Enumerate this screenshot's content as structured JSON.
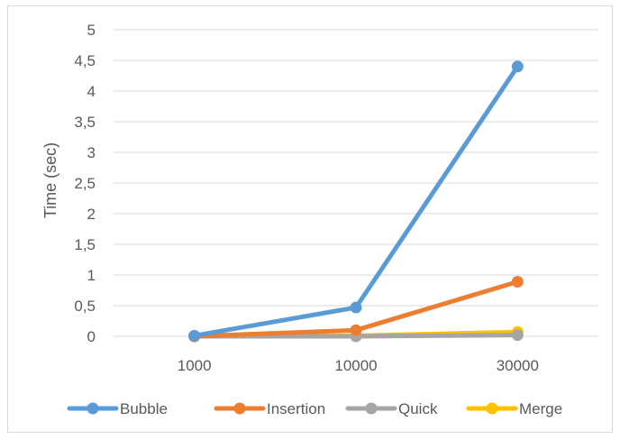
{
  "chart_data": {
    "type": "line",
    "title": "",
    "xlabel": "",
    "ylabel": "Time (sec)",
    "categories": [
      "1000",
      "10000",
      "30000"
    ],
    "ylim": [
      0,
      5
    ],
    "yticks": [
      "0",
      "0,5",
      "1",
      "1,5",
      "2",
      "2,5",
      "3",
      "3,5",
      "4",
      "4,5",
      "5"
    ],
    "grid": true,
    "legend_position": "bottom",
    "series": [
      {
        "name": "Bubble",
        "color": "#5b9bd5",
        "values": [
          0.01,
          0.47,
          4.4
        ]
      },
      {
        "name": "Insertion",
        "color": "#ed7d31",
        "values": [
          0.0,
          0.1,
          0.89
        ]
      },
      {
        "name": "Quick",
        "color": "#a5a5a5",
        "values": [
          0.0,
          0.0,
          0.02
        ]
      },
      {
        "name": "Merge",
        "color": "#ffc000",
        "values": [
          0.0,
          0.01,
          0.07
        ]
      }
    ]
  }
}
